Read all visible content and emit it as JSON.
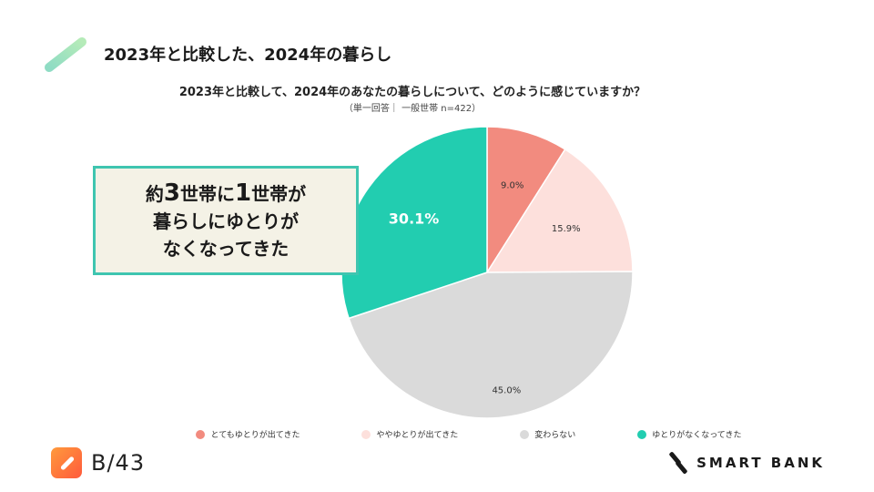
{
  "slide": {
    "title": "2023年と比較した、2024年の暮らし"
  },
  "callout": {
    "line1_pre": "約",
    "line1_num1": "3",
    "line1_mid": "世帯に",
    "line1_num2": "1",
    "line1_post": "世帯が",
    "line2": "暮らしにゆとりが",
    "line3": "なくなってきた"
  },
  "chart_data": {
    "type": "pie",
    "title": "2023年と比較して、2024年のあなたの暮らしについて、どのように感じていますか？",
    "subtitle": "（単一回答｜ 一般世帯 n=422）",
    "categories": [
      "とてもゆとりが出てきた",
      "ややゆとりが出てきた",
      "変わらない",
      "ゆとりがなくなってきた"
    ],
    "values": [
      9.0,
      15.9,
      45.0,
      30.1
    ],
    "data_labels": [
      "9.0%",
      "15.9%",
      "45.0%",
      "30.1%"
    ],
    "colors": [
      "#f28b7f",
      "#fde0dc",
      "#dadada",
      "#22cdb0"
    ],
    "label_colors": [
      "#333333",
      "#333333",
      "#333333",
      "#ffffff"
    ],
    "start_angle_deg": 0,
    "direction": "clockwise",
    "legend_position": "bottom"
  },
  "branding": {
    "left_logo_text": "B/43",
    "right_logo_text": "SMART BANK"
  }
}
